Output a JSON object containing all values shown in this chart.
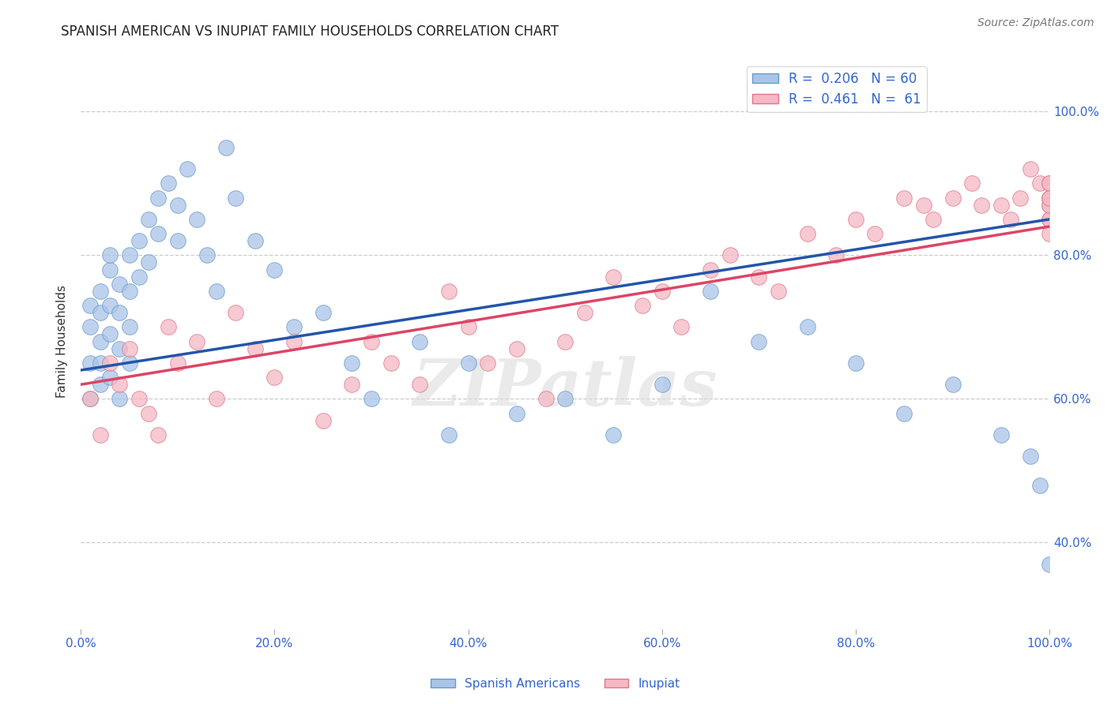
{
  "title": "SPANISH AMERICAN VS INUPIAT FAMILY HOUSEHOLDS CORRELATION CHART",
  "source": "Source: ZipAtlas.com",
  "ylabel": "Family Households",
  "xlim": [
    0,
    100
  ],
  "ylim": [
    28,
    108
  ],
  "yticks": [
    40,
    60,
    80,
    100
  ],
  "xticks": [
    0,
    20,
    40,
    60,
    80,
    100
  ],
  "xtick_labels": [
    "0.0%",
    "20.0%",
    "40.0%",
    "60.0%",
    "80.0%",
    "100.0%"
  ],
  "ytick_labels_right": [
    "40.0%",
    "60.0%",
    "80.0%",
    "100.0%"
  ],
  "grid_color": "#cccccc",
  "background_color": "#ffffff",
  "watermark_text": "ZIPatlas",
  "series": [
    {
      "name": "Spanish Americans",
      "color": "#aac4e8",
      "edge_color": "#6699cc",
      "R": 0.206,
      "N": 60,
      "line_color": "#2255aa",
      "x": [
        1,
        1,
        1,
        1,
        2,
        2,
        2,
        2,
        2,
        3,
        3,
        3,
        3,
        3,
        4,
        4,
        4,
        4,
        5,
        5,
        5,
        5,
        6,
        6,
        7,
        7,
        8,
        8,
        9,
        10,
        10,
        11,
        12,
        13,
        14,
        15,
        16,
        18,
        20,
        22,
        25,
        28,
        30,
        35,
        38,
        40,
        45,
        50,
        55,
        60,
        65,
        70,
        75,
        80,
        85,
        90,
        95,
        98,
        99,
        100
      ],
      "y": [
        65,
        70,
        73,
        60,
        68,
        72,
        75,
        65,
        62,
        78,
        80,
        73,
        69,
        63,
        76,
        72,
        67,
        60,
        80,
        75,
        70,
        65,
        82,
        77,
        85,
        79,
        88,
        83,
        90,
        87,
        82,
        92,
        85,
        80,
        75,
        95,
        88,
        82,
        78,
        70,
        72,
        65,
        60,
        68,
        55,
        65,
        58,
        60,
        55,
        62,
        75,
        68,
        70,
        65,
        58,
        62,
        55,
        52,
        48,
        37
      ],
      "x_extra": [
        2,
        3,
        5,
        7,
        9,
        12,
        15,
        18,
        22,
        25,
        30,
        35,
        40,
        50,
        60,
        70,
        80,
        90,
        100
      ],
      "y_extra": [
        57,
        55,
        58,
        60,
        52,
        48,
        45,
        50,
        55,
        48,
        53,
        48,
        55,
        52,
        48,
        45,
        52,
        48,
        37
      ]
    },
    {
      "name": "Inupiat",
      "color": "#f5b8c4",
      "edge_color": "#dd7788",
      "R": 0.461,
      "N": 61,
      "line_color": "#dd4466",
      "x": [
        1,
        2,
        3,
        4,
        5,
        6,
        7,
        8,
        9,
        10,
        12,
        14,
        16,
        18,
        20,
        22,
        25,
        28,
        30,
        32,
        35,
        38,
        40,
        42,
        45,
        48,
        50,
        52,
        55,
        58,
        60,
        62,
        65,
        67,
        70,
        72,
        75,
        78,
        80,
        82,
        85,
        87,
        88,
        90,
        92,
        93,
        95,
        96,
        97,
        98,
        99,
        100,
        100,
        100,
        100,
        100,
        100,
        100,
        100,
        100,
        100
      ],
      "y": [
        60,
        55,
        65,
        62,
        67,
        60,
        58,
        55,
        70,
        65,
        68,
        60,
        72,
        67,
        63,
        68,
        57,
        62,
        68,
        65,
        62,
        75,
        70,
        65,
        67,
        60,
        68,
        72,
        77,
        73,
        75,
        70,
        78,
        80,
        77,
        75,
        83,
        80,
        85,
        83,
        88,
        87,
        85,
        88,
        90,
        87,
        87,
        85,
        88,
        92,
        90,
        85,
        88,
        87,
        90,
        88,
        83,
        85,
        87,
        90,
        88
      ]
    }
  ],
  "blue_line_start_y": 64,
  "blue_line_end_y": 85,
  "pink_line_start_y": 62,
  "pink_line_end_y": 84
}
